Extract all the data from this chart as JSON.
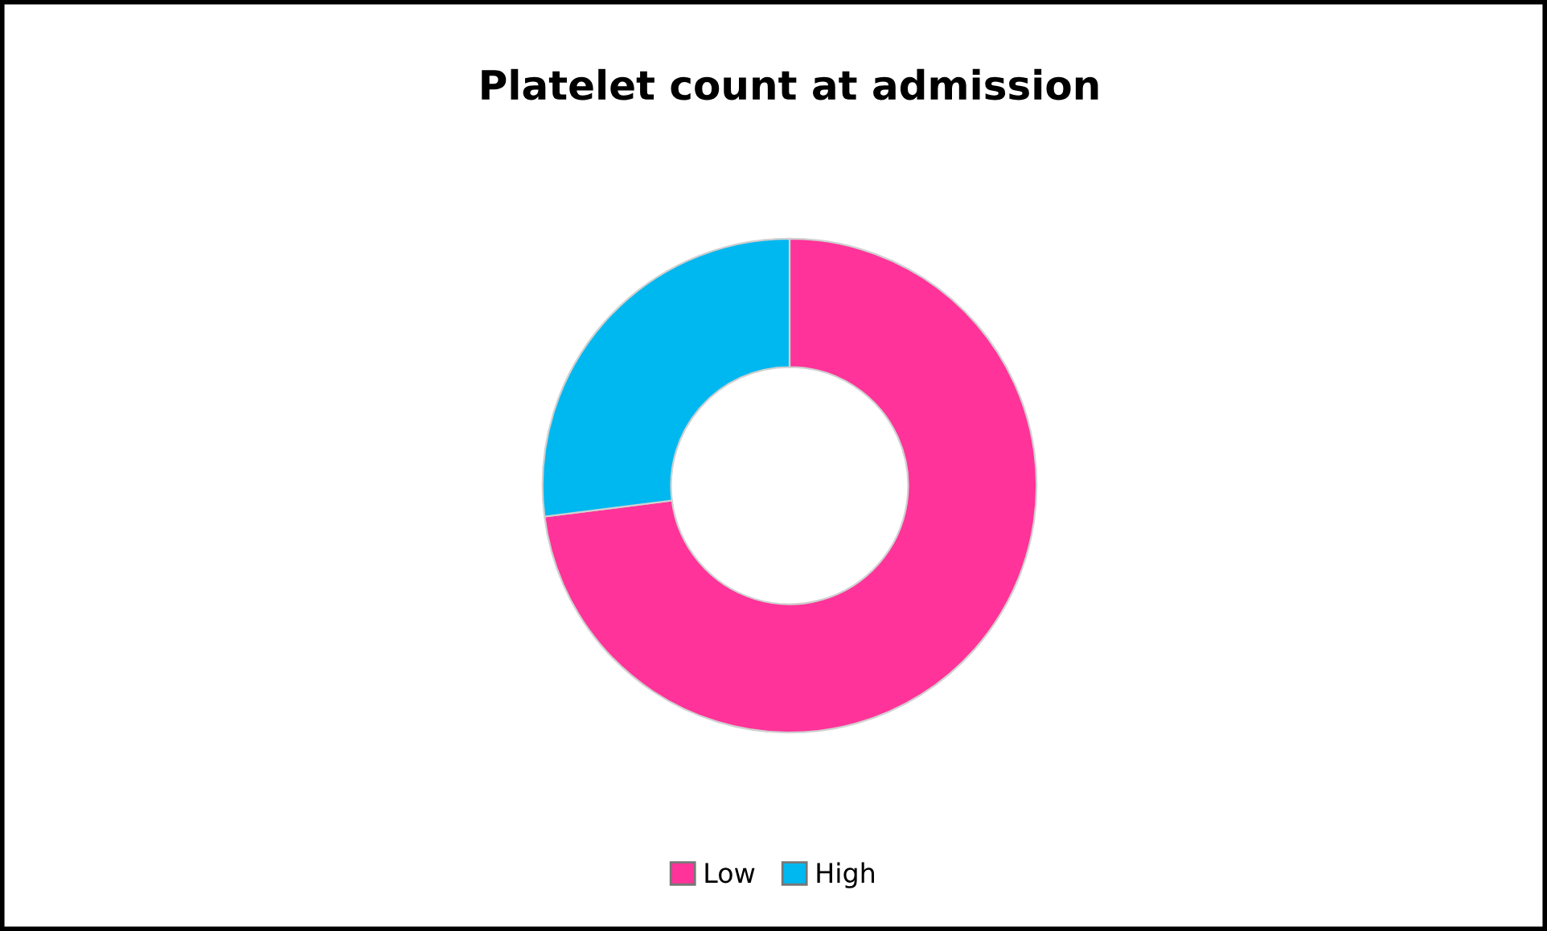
{
  "chart_data": {
    "type": "donut",
    "title": "Platelet count at admission",
    "categories": [
      "Low",
      "High"
    ],
    "values": [
      73,
      27
    ],
    "colors": [
      "#ff3399",
      "#00b8f0"
    ],
    "legend": "bottom"
  }
}
